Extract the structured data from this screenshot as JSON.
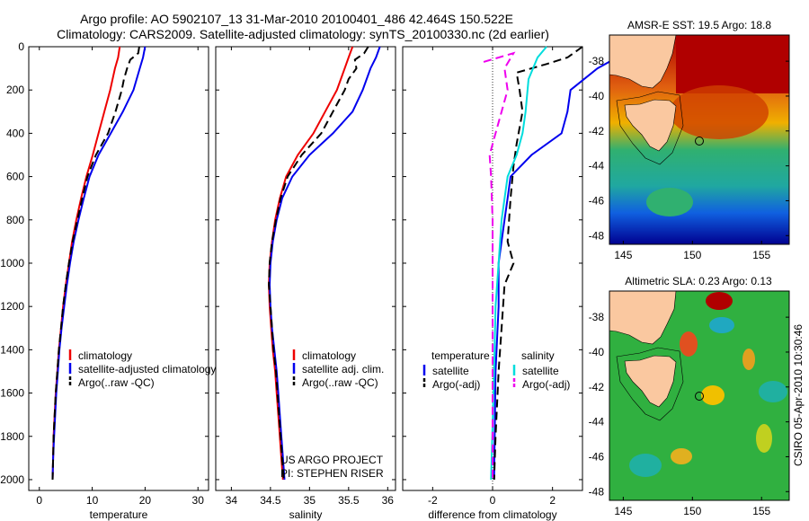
{
  "title": {
    "line1": "Argo profile: AO 5902107_13 31-Mar-2010 20100401_486 42.464S 150.522E",
    "line2": "Climatology: CARS2009. Satellite-adjusted climatology: synTS_20100330.nc (2d earlier)"
  },
  "side_label": "CSIRO 05-Apr-2010 10:30:46",
  "chart_data": [
    {
      "id": "temperature",
      "type": "line",
      "xlabel": "temperature",
      "ylabel": "",
      "xlim": [
        -2,
        32
      ],
      "ylim": [
        2050,
        0
      ],
      "xticks": [
        0,
        10,
        20,
        30
      ],
      "yticks": [
        0,
        200,
        400,
        600,
        800,
        1000,
        1200,
        1400,
        1600,
        1800,
        2000
      ],
      "legend_position": "lower-right",
      "series": [
        {
          "name": "climatology",
          "color": "#ee0000",
          "dash": "",
          "points": [
            [
              15.2,
              0
            ],
            [
              14.9,
              50
            ],
            [
              14.3,
              100
            ],
            [
              13.4,
              200
            ],
            [
              12.3,
              300
            ],
            [
              11.2,
              400
            ],
            [
              10.1,
              500
            ],
            [
              8.9,
              600
            ],
            [
              7.9,
              700
            ],
            [
              7.0,
              800
            ],
            [
              6.2,
              900
            ],
            [
              5.6,
              1000
            ],
            [
              5.0,
              1100
            ],
            [
              4.5,
              1200
            ],
            [
              4.1,
              1300
            ],
            [
              3.7,
              1400
            ],
            [
              3.4,
              1500
            ],
            [
              3.1,
              1600
            ],
            [
              2.9,
              1700
            ],
            [
              2.7,
              1800
            ],
            [
              2.6,
              1900
            ],
            [
              2.5,
              2000
            ]
          ]
        },
        {
          "name": "satellite-adjusted climatology",
          "color": "#0000ee",
          "dash": "",
          "points": [
            [
              20.0,
              0
            ],
            [
              19.6,
              50
            ],
            [
              19.0,
              100
            ],
            [
              17.8,
              200
            ],
            [
              15.8,
              300
            ],
            [
              13.5,
              400
            ],
            [
              11.2,
              500
            ],
            [
              9.5,
              600
            ],
            [
              8.4,
              700
            ],
            [
              7.4,
              800
            ],
            [
              6.5,
              900
            ],
            [
              5.8,
              1000
            ],
            [
              5.2,
              1100
            ],
            [
              4.7,
              1200
            ],
            [
              4.2,
              1300
            ],
            [
              3.8,
              1400
            ],
            [
              3.5,
              1500
            ],
            [
              3.2,
              1600
            ],
            [
              3.0,
              1700
            ],
            [
              2.8,
              1800
            ],
            [
              2.6,
              1900
            ],
            [
              2.5,
              2000
            ]
          ]
        },
        {
          "name": "Argo(..raw -QC)",
          "color": "#000000",
          "dash": "9,5",
          "points": [
            [
              18.9,
              0
            ],
            [
              18.7,
              30
            ],
            [
              17.2,
              60
            ],
            [
              16.6,
              100
            ],
            [
              16.0,
              150
            ],
            [
              15.6,
              200
            ],
            [
              14.4,
              300
            ],
            [
              13.0,
              400
            ],
            [
              10.7,
              500
            ],
            [
              9.1,
              600
            ],
            [
              8.1,
              700
            ],
            [
              7.2,
              800
            ],
            [
              6.3,
              900
            ],
            [
              5.6,
              1000
            ],
            [
              5.0,
              1100
            ],
            [
              4.5,
              1200
            ],
            [
              4.1,
              1300
            ],
            [
              3.7,
              1400
            ],
            [
              3.4,
              1500
            ],
            [
              3.1,
              1600
            ],
            [
              2.9,
              1700
            ],
            [
              2.7,
              1800
            ],
            [
              2.6,
              1900
            ],
            [
              2.5,
              2000
            ]
          ]
        }
      ]
    },
    {
      "id": "salinity",
      "type": "line",
      "xlabel": "salinity",
      "ylabel": "",
      "xlim": [
        33.8,
        36.1
      ],
      "ylim": [
        2050,
        0
      ],
      "xticks": [
        34,
        34.5,
        35,
        35.5,
        36
      ],
      "legend_position": "lower-right",
      "series": [
        {
          "name": "climatology",
          "color": "#ee0000",
          "dash": "",
          "points": [
            [
              35.55,
              0
            ],
            [
              35.5,
              50
            ],
            [
              35.45,
              100
            ],
            [
              35.35,
              200
            ],
            [
              35.2,
              300
            ],
            [
              35.05,
              400
            ],
            [
              34.85,
              500
            ],
            [
              34.7,
              600
            ],
            [
              34.62,
              700
            ],
            [
              34.56,
              800
            ],
            [
              34.52,
              900
            ],
            [
              34.49,
              1000
            ],
            [
              34.48,
              1100
            ],
            [
              34.49,
              1200
            ],
            [
              34.51,
              1300
            ],
            [
              34.53,
              1400
            ],
            [
              34.56,
              1500
            ],
            [
              34.58,
              1600
            ],
            [
              34.6,
              1700
            ],
            [
              34.62,
              1800
            ],
            [
              34.64,
              1900
            ],
            [
              34.66,
              2000
            ]
          ]
        },
        {
          "name": "satellite adj. clim.",
          "color": "#0000ee",
          "dash": "",
          "points": [
            [
              35.9,
              0
            ],
            [
              35.85,
              50
            ],
            [
              35.78,
              100
            ],
            [
              35.68,
              200
            ],
            [
              35.55,
              300
            ],
            [
              35.3,
              400
            ],
            [
              35.0,
              500
            ],
            [
              34.78,
              600
            ],
            [
              34.65,
              700
            ],
            [
              34.58,
              800
            ],
            [
              34.53,
              900
            ],
            [
              34.5,
              1000
            ],
            [
              34.49,
              1100
            ],
            [
              34.5,
              1200
            ],
            [
              34.52,
              1300
            ],
            [
              34.55,
              1400
            ],
            [
              34.58,
              1500
            ],
            [
              34.6,
              1600
            ],
            [
              34.62,
              1700
            ],
            [
              34.64,
              1800
            ],
            [
              34.66,
              1900
            ],
            [
              34.68,
              2000
            ]
          ]
        },
        {
          "name": "Argo(..raw -QC)",
          "color": "#000000",
          "dash": "9,5",
          "points": [
            [
              35.75,
              0
            ],
            [
              35.7,
              30
            ],
            [
              35.58,
              60
            ],
            [
              35.6,
              100
            ],
            [
              35.5,
              150
            ],
            [
              35.45,
              200
            ],
            [
              35.3,
              300
            ],
            [
              35.15,
              400
            ],
            [
              34.9,
              500
            ],
            [
              34.72,
              600
            ],
            [
              34.63,
              700
            ],
            [
              34.57,
              800
            ],
            [
              34.52,
              900
            ],
            [
              34.49,
              1000
            ],
            [
              34.48,
              1100
            ],
            [
              34.5,
              1200
            ],
            [
              34.52,
              1300
            ],
            [
              34.54,
              1400
            ],
            [
              34.57,
              1500
            ],
            [
              34.59,
              1600
            ],
            [
              34.61,
              1700
            ],
            [
              34.63,
              1800
            ],
            [
              34.65,
              1900
            ],
            [
              34.67,
              2000
            ]
          ]
        }
      ],
      "annotations": [
        "US ARGO PROJECT",
        "PI: STEPHEN RISER"
      ]
    },
    {
      "id": "difference",
      "type": "line",
      "xlabel": "difference from climatology",
      "ylabel": "",
      "xlim": [
        -3,
        3
      ],
      "ylim": [
        2050,
        0
      ],
      "xticks": [
        -2,
        0,
        2
      ],
      "legend_position": "lower",
      "legend_headers": [
        "temperature",
        "salinity"
      ],
      "series": [
        {
          "name": "satellite",
          "group": "temperature",
          "color": "#0000ee",
          "dash": "",
          "points": [
            [
              4.8,
              0
            ],
            [
              3.5,
              100
            ],
            [
              2.6,
              200
            ],
            [
              2.5,
              300
            ],
            [
              2.3,
              400
            ],
            [
              1.3,
              500
            ],
            [
              0.6,
              600
            ],
            [
              0.5,
              700
            ],
            [
              0.4,
              800
            ],
            [
              0.3,
              900
            ],
            [
              0.2,
              1000
            ],
            [
              0.2,
              1200
            ],
            [
              0.1,
              1500
            ],
            [
              0.05,
              2000
            ]
          ]
        },
        {
          "name": "Argo(-adj)",
          "group": "temperature",
          "color": "#000000",
          "dash": "9,5",
          "points": [
            [
              3.0,
              0
            ],
            [
              2.5,
              50
            ],
            [
              1.8,
              80
            ],
            [
              0.8,
              120
            ],
            [
              0.9,
              200
            ],
            [
              1.0,
              300
            ],
            [
              0.8,
              450
            ],
            [
              0.7,
              550
            ],
            [
              0.6,
              700
            ],
            [
              0.5,
              900
            ],
            [
              0.7,
              1000
            ],
            [
              0.4,
              1100
            ],
            [
              0.3,
              1300
            ],
            [
              0.2,
              1500
            ],
            [
              0.1,
              1800
            ],
            [
              0.05,
              2000
            ]
          ]
        },
        {
          "name": "satellite",
          "group": "salinity",
          "color": "#00dddd",
          "dash": "",
          "points": [
            [
              1.8,
              0
            ],
            [
              1.5,
              50
            ],
            [
              1.2,
              150
            ],
            [
              1.1,
              300
            ],
            [
              1.0,
              400
            ],
            [
              0.8,
              500
            ],
            [
              0.5,
              600
            ],
            [
              0.3,
              800
            ],
            [
              0.2,
              1000
            ],
            [
              0.1,
              1200
            ],
            [
              0.05,
              1500
            ],
            [
              -0.05,
              2000
            ]
          ]
        },
        {
          "name": "Argo(-adj)",
          "group": "salinity",
          "color": "#ee00ee",
          "dash": "9,5",
          "points": [
            [
              -0.3,
              70
            ],
            [
              0.7,
              30
            ],
            [
              0.4,
              100
            ],
            [
              0.5,
              200
            ],
            [
              0.3,
              300
            ],
            [
              0.1,
              400
            ],
            [
              -0.1,
              500
            ],
            [
              -0.05,
              600
            ],
            [
              0.0,
              800
            ],
            [
              0.0,
              1000
            ],
            [
              0.0,
              1500
            ],
            [
              0.0,
              2000
            ]
          ]
        }
      ]
    },
    {
      "id": "sst-map",
      "type": "heatmap",
      "title": "AMSR-E SST: 19.5 Argo: 18.8",
      "xlim": [
        144,
        157
      ],
      "ylim": [
        -48.5,
        -36.5
      ],
      "xticks": [
        145,
        150,
        155
      ],
      "yticks": [
        -38,
        -40,
        -42,
        -44,
        -46,
        -48
      ],
      "marker": {
        "lon": 150.5,
        "lat": -42.5
      }
    },
    {
      "id": "sla-map",
      "type": "heatmap",
      "title": "Altimetric SLA: 0.23 Argo: 0.13",
      "xlim": [
        144,
        157
      ],
      "ylim": [
        -48.5,
        -36.5
      ],
      "xticks": [
        145,
        150,
        155
      ],
      "yticks": [
        -38,
        -40,
        -42,
        -44,
        -46,
        -48
      ],
      "marker": {
        "lon": 150.5,
        "lat": -42.5
      }
    }
  ]
}
